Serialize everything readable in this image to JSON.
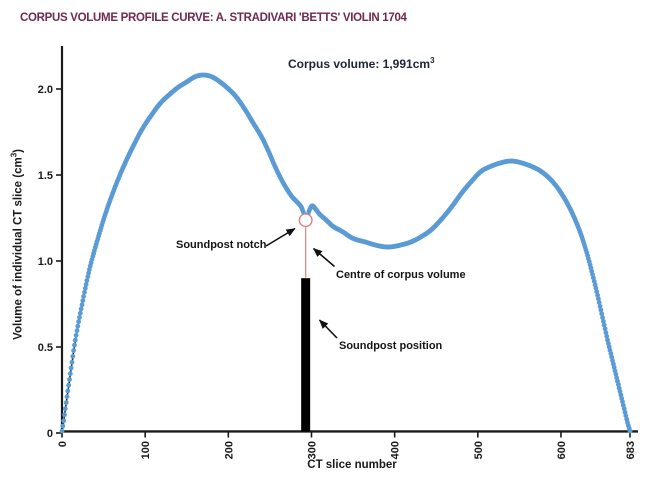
{
  "chart_data": {
    "type": "scatter",
    "title": "CORPUS VOLUME PROFILE CURVE: A. STRADIVARI 'BETTS' VIOLIN 1704",
    "xlabel": "CT slice number",
    "ylabel": {
      "prefix": "Volume of individual CT slice (cm",
      "sup": "3",
      "suffix": ")"
    },
    "xlim": [
      0,
      683
    ],
    "ylim": [
      0,
      2.2
    ],
    "grid": false,
    "legend": "none",
    "x_ticks": [
      {
        "value": 0,
        "label": "0"
      },
      {
        "value": 100,
        "label": "100"
      },
      {
        "value": 200,
        "label": "200"
      },
      {
        "value": 300,
        "label": "300"
      },
      {
        "value": 400,
        "label": "400"
      },
      {
        "value": 500,
        "label": "500"
      },
      {
        "value": 600,
        "label": "600"
      },
      {
        "value": 683,
        "label": "683"
      }
    ],
    "y_ticks": [
      {
        "value": 0,
        "label": "0"
      },
      {
        "value": 0.5,
        "label": "0.5"
      },
      {
        "value": 1.0,
        "label": "1.0"
      },
      {
        "value": 1.5,
        "label": "1.5"
      },
      {
        "value": 2.0,
        "label": "2.0"
      }
    ],
    "points_slice_volume": [
      [
        0,
        0.01
      ],
      [
        2,
        0.07
      ],
      [
        4,
        0.14
      ],
      [
        6,
        0.21
      ],
      [
        9,
        0.31
      ],
      [
        12,
        0.41
      ],
      [
        15,
        0.51
      ],
      [
        19,
        0.62
      ],
      [
        23,
        0.72
      ],
      [
        28,
        0.84
      ],
      [
        33,
        0.95
      ],
      [
        39,
        1.06
      ],
      [
        45,
        1.16
      ],
      [
        52,
        1.27
      ],
      [
        60,
        1.38
      ],
      [
        68,
        1.48
      ],
      [
        77,
        1.58
      ],
      [
        87,
        1.68
      ],
      [
        97,
        1.77
      ],
      [
        108,
        1.85
      ],
      [
        119,
        1.92
      ],
      [
        130,
        1.97
      ],
      [
        140,
        2.01
      ],
      [
        150,
        2.04
      ],
      [
        160,
        2.07
      ],
      [
        170,
        2.08
      ],
      [
        180,
        2.07
      ],
      [
        190,
        2.04
      ],
      [
        200,
        2.0
      ],
      [
        210,
        1.95
      ],
      [
        220,
        1.88
      ],
      [
        230,
        1.8
      ],
      [
        240,
        1.72
      ],
      [
        248,
        1.64
      ],
      [
        256,
        1.55
      ],
      [
        263,
        1.48
      ],
      [
        270,
        1.42
      ],
      [
        277,
        1.37
      ],
      [
        283,
        1.34
      ],
      [
        288,
        1.31
      ],
      [
        291,
        1.27
      ],
      [
        293,
        1.24
      ],
      [
        295,
        1.26
      ],
      [
        298,
        1.3
      ],
      [
        301,
        1.32
      ],
      [
        305,
        1.3
      ],
      [
        310,
        1.27
      ],
      [
        317,
        1.24
      ],
      [
        326,
        1.2
      ],
      [
        337,
        1.17
      ],
      [
        350,
        1.13
      ],
      [
        364,
        1.11
      ],
      [
        378,
        1.09
      ],
      [
        392,
        1.08
      ],
      [
        406,
        1.09
      ],
      [
        420,
        1.11
      ],
      [
        432,
        1.14
      ],
      [
        444,
        1.18
      ],
      [
        456,
        1.24
      ],
      [
        468,
        1.31
      ],
      [
        480,
        1.39
      ],
      [
        492,
        1.46
      ],
      [
        504,
        1.52
      ],
      [
        516,
        1.55
      ],
      [
        528,
        1.57
      ],
      [
        540,
        1.58
      ],
      [
        552,
        1.57
      ],
      [
        564,
        1.55
      ],
      [
        576,
        1.52
      ],
      [
        588,
        1.47
      ],
      [
        598,
        1.41
      ],
      [
        608,
        1.33
      ],
      [
        617,
        1.24
      ],
      [
        625,
        1.14
      ],
      [
        632,
        1.03
      ],
      [
        638,
        0.92
      ],
      [
        644,
        0.8
      ],
      [
        650,
        0.67
      ],
      [
        656,
        0.54
      ],
      [
        662,
        0.42
      ],
      [
        668,
        0.3
      ],
      [
        673,
        0.2
      ],
      [
        677,
        0.12
      ],
      [
        680,
        0.06
      ],
      [
        683,
        0.01
      ]
    ],
    "annotations": {
      "corpus_volume": {
        "prefix": "Corpus volume: 1,991cm",
        "sup": "3"
      },
      "soundpost_notch": {
        "label": "Soundpost notch",
        "marker_slice": 293,
        "marker_volume": 1.2
      },
      "centre_of_corpus_volume": {
        "label": "Centre of corpus volume"
      },
      "soundpost_position": {
        "label": "Soundpost position",
        "bar_slice": 293,
        "bar_top_volume": 0.9
      }
    }
  },
  "colors": {
    "title": "#702a4e",
    "curve_dots": "#5b9bd5",
    "curve_line": "#1c1c1c",
    "axis": "#1a1a1a",
    "text": "#151515",
    "corpus_text": "#1d2433",
    "notch_marker": "#d9827f",
    "soundpost_bar": "#000000"
  },
  "icons": {
    "arrow": "filled-triangle-arrowhead"
  }
}
